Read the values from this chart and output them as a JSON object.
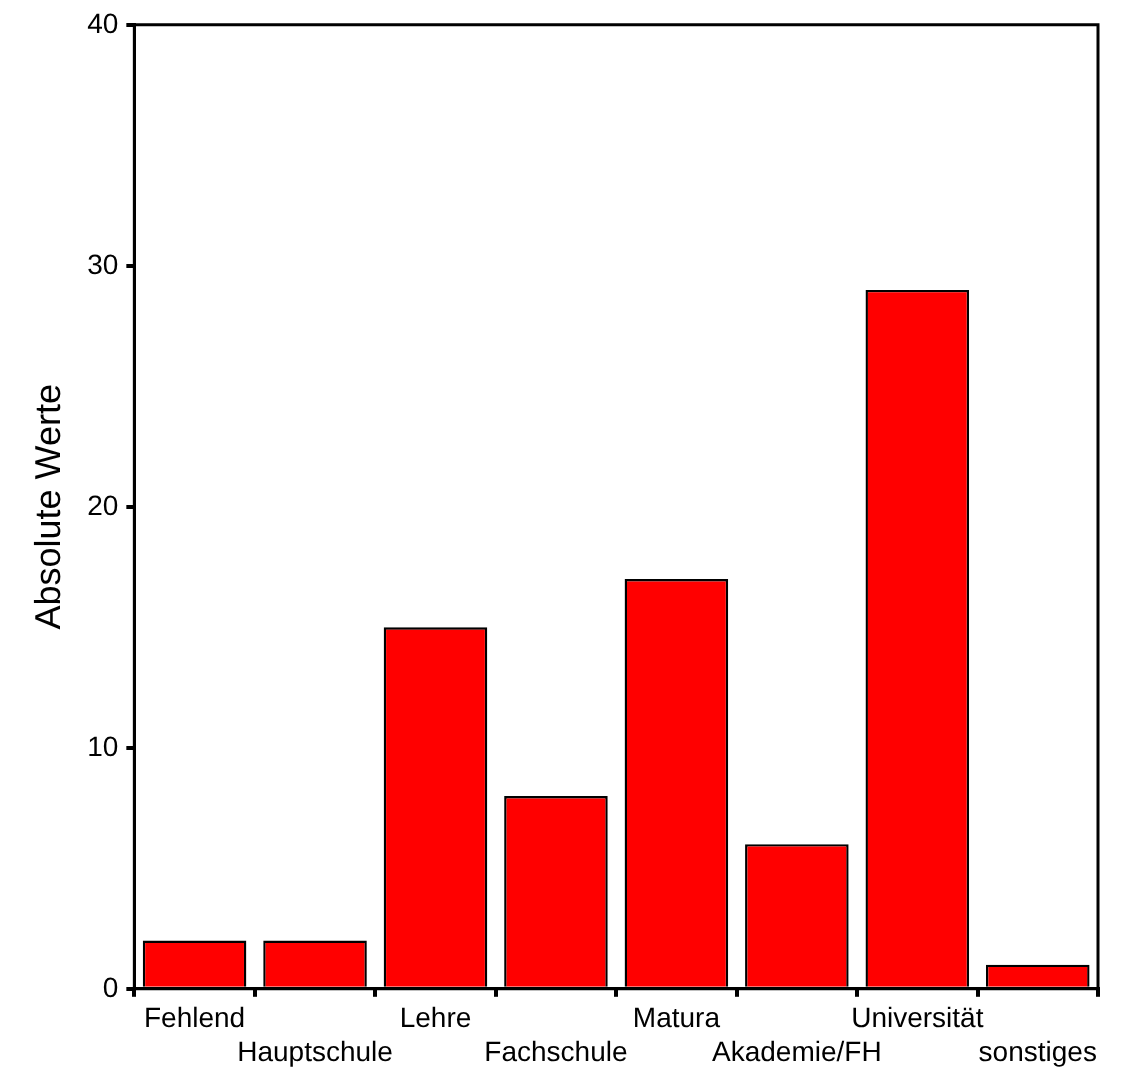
{
  "chart_data": {
    "type": "bar",
    "ylabel": "Absolute Werte",
    "categories": [
      "Fehlend",
      "Hauptschule",
      "Lehre",
      "Fachschule",
      "Matura",
      "Akademie/FH",
      "Universität",
      "sonstiges"
    ],
    "values": [
      2,
      2,
      15,
      8,
      17,
      6,
      29,
      1
    ],
    "color": "#ff0000",
    "ylim": [
      0,
      40
    ],
    "yticks": [
      0,
      10,
      20,
      30,
      40
    ],
    "grid": false
  }
}
